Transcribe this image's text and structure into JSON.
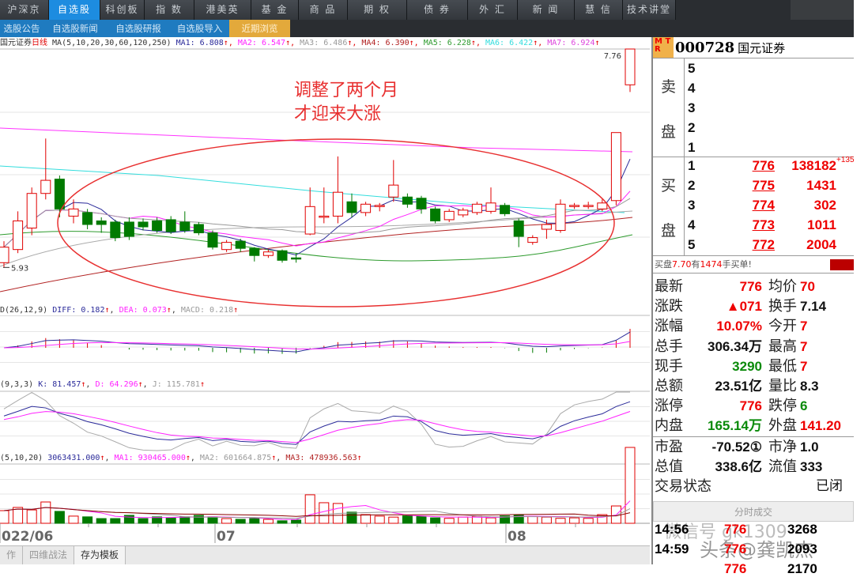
{
  "topmenu": [
    "沪深京",
    "自选股",
    "科创板",
    "指 数",
    "港美英",
    "基 金",
    "商 品",
    "期 权",
    "债 券",
    "外 汇",
    "新 闻",
    "慧 信",
    "技术讲堂"
  ],
  "topmenu_active": 1,
  "submenu": [
    "选股公告",
    "自选股新闻",
    "自选股研报",
    "自选股导入",
    "近期浏览"
  ],
  "main": {
    "stock": "国元证券",
    "period": "日线",
    "ma_params": "MA(5,10,20,30,60,120,250)",
    "ma": [
      {
        "label": "MA1: 6.808",
        "color": "#2b2b9a"
      },
      {
        "label": "MA2: 6.547",
        "color": "#ff22ff"
      },
      {
        "label": "MA3: 6.486",
        "color": "#999999"
      },
      {
        "label": "MA4: 6.390",
        "color": "#b22222"
      },
      {
        "label": "MA5: 6.228",
        "color": "#2e9b2e"
      },
      {
        "label": "MA6: 6.422",
        "color": "#33dddd"
      },
      {
        "label": "MA7: 6.924",
        "color": "#dd44dd"
      }
    ],
    "high_label": "7.76",
    "low_label": "5.93",
    "annotation": [
      "调整了两个月",
      "才迎来大涨"
    ]
  },
  "macd": {
    "params": "D(26,12,9)",
    "diff": "DIFF: 0.182",
    "dea": "DEA: 0.073",
    "macd": "MACD: 0.218"
  },
  "kdj": {
    "params": "(9,3,3)",
    "k": "K: 81.457",
    "d": "D: 64.296",
    "j": "J: 115.781"
  },
  "vol": {
    "params": "(5,10,20)",
    "value": "3063431.000",
    "ma1": "MA1: 930465.000",
    "ma2": "MA2: 601664.875",
    "ma3": "MA3: 478936.563"
  },
  "dates": [
    "022/06",
    "07",
    "08"
  ],
  "bottom_tabs": [
    "作",
    "四维战法",
    "存为模板"
  ],
  "chart_data": {
    "type": "candlestick",
    "columns": [
      "open",
      "close",
      "high",
      "low",
      "volume_wan"
    ],
    "candles": [
      [
        5.97,
        6.1,
        6.15,
        5.93,
        51
      ],
      [
        6.08,
        6.32,
        6.4,
        6.05,
        64
      ],
      [
        6.26,
        6.55,
        6.6,
        6.2,
        54
      ],
      [
        6.55,
        6.66,
        7.01,
        6.5,
        86
      ],
      [
        6.67,
        6.42,
        6.7,
        6.35,
        48
      ],
      [
        6.36,
        6.42,
        6.5,
        6.3,
        29
      ],
      [
        6.39,
        6.29,
        6.42,
        6.25,
        26
      ],
      [
        6.32,
        6.29,
        6.35,
        6.22,
        19
      ],
      [
        6.31,
        6.18,
        6.33,
        6.15,
        19
      ],
      [
        6.31,
        6.19,
        6.35,
        6.16,
        32
      ],
      [
        6.31,
        6.27,
        6.34,
        6.24,
        19
      ],
      [
        6.32,
        6.24,
        6.35,
        6.22,
        26
      ],
      [
        6.33,
        6.23,
        6.36,
        6.21,
        22
      ],
      [
        6.31,
        6.24,
        6.4,
        6.22,
        26
      ],
      [
        6.29,
        6.22,
        6.31,
        6.2,
        32
      ],
      [
        6.22,
        6.1,
        6.24,
        6.08,
        26
      ],
      [
        6.08,
        6.14,
        6.16,
        6.06,
        19
      ],
      [
        6.15,
        6.09,
        6.17,
        6.06,
        16
      ],
      [
        6.09,
        6.03,
        6.1,
        5.98,
        19
      ],
      [
        6.03,
        6.06,
        6.08,
        6.01,
        16
      ],
      [
        6.07,
        5.99,
        6.08,
        5.97,
        10
      ],
      [
        6.01,
        6.0,
        6.05,
        5.97,
        13
      ],
      [
        6.21,
        6.44,
        6.6,
        6.2,
        115
      ],
      [
        6.35,
        6.36,
        6.6,
        6.3,
        83
      ],
      [
        6.36,
        6.56,
        6.86,
        6.3,
        80
      ],
      [
        6.48,
        6.39,
        6.55,
        6.35,
        45
      ],
      [
        6.39,
        6.46,
        6.48,
        6.36,
        35
      ],
      [
        6.44,
        6.45,
        6.47,
        6.4,
        29
      ],
      [
        6.52,
        6.62,
        6.83,
        6.48,
        25
      ],
      [
        6.52,
        6.46,
        6.55,
        6.43,
        30
      ],
      [
        6.51,
        6.42,
        6.53,
        6.38,
        28
      ],
      [
        6.42,
        6.32,
        6.44,
        6.3,
        22
      ],
      [
        6.33,
        6.4,
        6.42,
        6.31,
        20
      ],
      [
        6.37,
        6.41,
        6.43,
        6.35,
        25
      ],
      [
        6.39,
        6.46,
        6.48,
        6.37,
        28
      ],
      [
        6.4,
        6.47,
        6.6,
        6.38,
        22
      ],
      [
        6.45,
        6.38,
        6.47,
        6.36,
        30
      ],
      [
        6.32,
        6.19,
        6.34,
        6.1,
        35
      ],
      [
        6.14,
        6.18,
        6.2,
        6.12,
        28
      ],
      [
        6.25,
        6.29,
        6.33,
        6.17,
        25
      ],
      [
        6.24,
        6.46,
        6.5,
        6.22,
        20
      ],
      [
        6.44,
        6.45,
        6.47,
        6.42,
        22
      ],
      [
        6.44,
        6.45,
        6.48,
        6.42,
        20
      ],
      [
        6.42,
        6.47,
        6.5,
        6.4,
        35
      ],
      [
        6.49,
        7.06,
        7.06,
        6.45,
        70
      ],
      [
        7.46,
        7.76,
        7.76,
        7.4,
        306
      ]
    ],
    "ylim": [
      5.93,
      7.76
    ]
  },
  "quote": {
    "mtr": [
      "M",
      "T",
      "R"
    ],
    "code": "000728",
    "name": "国元证券",
    "sell_label": [
      "卖",
      "盘"
    ],
    "buy_label": [
      "买",
      "盘"
    ],
    "sell": [
      {
        "lv": "5"
      },
      {
        "lv": "4"
      },
      {
        "lv": "3"
      },
      {
        "lv": "2"
      },
      {
        "lv": "1"
      }
    ],
    "buy": [
      {
        "lv": "1",
        "price": "776",
        "vol": "138182",
        "chg": "+135"
      },
      {
        "lv": "2",
        "price": "775",
        "vol": "1431"
      },
      {
        "lv": "3",
        "price": "774",
        "vol": "302"
      },
      {
        "lv": "4",
        "price": "773",
        "vol": "1011"
      },
      {
        "lv": "5",
        "price": "772",
        "vol": "2004"
      }
    ],
    "note": {
      "a": "买盘",
      "b": "7.70",
      "c": "有",
      "d": "1474",
      "e": "手买单!"
    },
    "stats": [
      {
        "l1": "最新",
        "v1": "776",
        "c1": "red",
        "l2": "均价",
        "v2": "70",
        "c2": "red"
      },
      {
        "l1": "涨跌",
        "v1": "▲071",
        "c1": "red",
        "l2": "换手",
        "v2": "7.14",
        "c2": "blk"
      },
      {
        "l1": "涨幅",
        "v1": "10.07%",
        "c1": "red",
        "l2": "今开",
        "v2": "7",
        "c2": "red"
      },
      {
        "l1": "总手",
        "v1": "306.34万",
        "c1": "blk",
        "l2": "最高",
        "v2": "7",
        "c2": "red"
      },
      {
        "l1": "现手",
        "v1": "3290",
        "c1": "grn",
        "l2": "最低",
        "v2": "7",
        "c2": "red"
      },
      {
        "l1": "总额",
        "v1": "23.51亿",
        "c1": "blk",
        "l2": "量比",
        "v2": "8.3",
        "c2": "blk"
      },
      {
        "l1": "涨停",
        "v1": "776",
        "c1": "red",
        "l2": "跌停",
        "v2": "6",
        "c2": "grn"
      },
      {
        "l1": "内盘",
        "v1": "165.14万",
        "c1": "grn",
        "l2": "外盘",
        "v2": "141.20",
        "c2": "red"
      }
    ],
    "stats2": [
      {
        "l1": "市盈",
        "v1": "-70.52①",
        "c1": "blk",
        "l2": "市净",
        "v2": "1.0",
        "c2": "blk"
      },
      {
        "l1": "总值",
        "v1": "338.6亿",
        "c1": "blk",
        "l2": "流值",
        "v2": "333",
        "c2": "blk"
      }
    ],
    "trade_status_label": "交易状态",
    "trade_status": "已闭",
    "trades_header": "分时成交",
    "trades": [
      {
        "t": "14:56",
        "p": "776",
        "q": "3268"
      },
      {
        "t": "14:59",
        "p": "776",
        "q": "2093"
      },
      {
        "t": "",
        "p": "776",
        "q": "2170"
      }
    ]
  },
  "watermark": {
    "wechat": "微信号 gk1309",
    "toutiao": "头条@龚凯杰"
  },
  "colors": {
    "up": "#e00000",
    "down": "#007a00",
    "accent": "#1d8ce0",
    "recent": "#e3a93b"
  }
}
